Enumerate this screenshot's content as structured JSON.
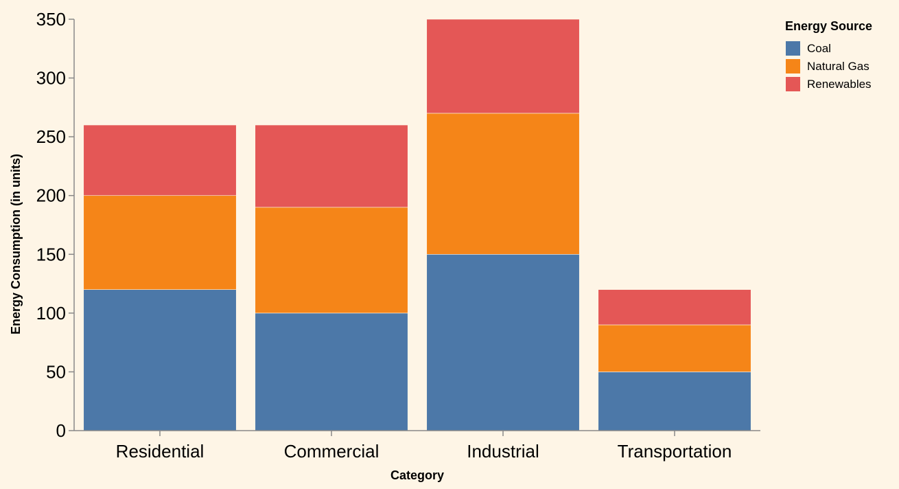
{
  "chart_data": {
    "type": "bar",
    "stacked": true,
    "categories": [
      "Residential",
      "Commercial",
      "Industrial",
      "Transportation"
    ],
    "series": [
      {
        "name": "Coal",
        "values": [
          120,
          100,
          150,
          50
        ],
        "color": "#4C78A8"
      },
      {
        "name": "Natural Gas",
        "values": [
          80,
          90,
          120,
          40
        ],
        "color": "#F58518"
      },
      {
        "name": "Renewables",
        "values": [
          60,
          70,
          80,
          30
        ],
        "color": "#E45756"
      }
    ],
    "xlabel": "Category",
    "ylabel": "Energy Consumption (in units)",
    "ylim": [
      0,
      350
    ],
    "yticks": [
      0,
      50,
      100,
      150,
      200,
      250,
      300,
      350
    ],
    "grid": false,
    "legend": {
      "title": "Energy Source",
      "placement": "top-right"
    }
  },
  "colors": {
    "background": "#FEF5E6",
    "axis": "#888888"
  }
}
